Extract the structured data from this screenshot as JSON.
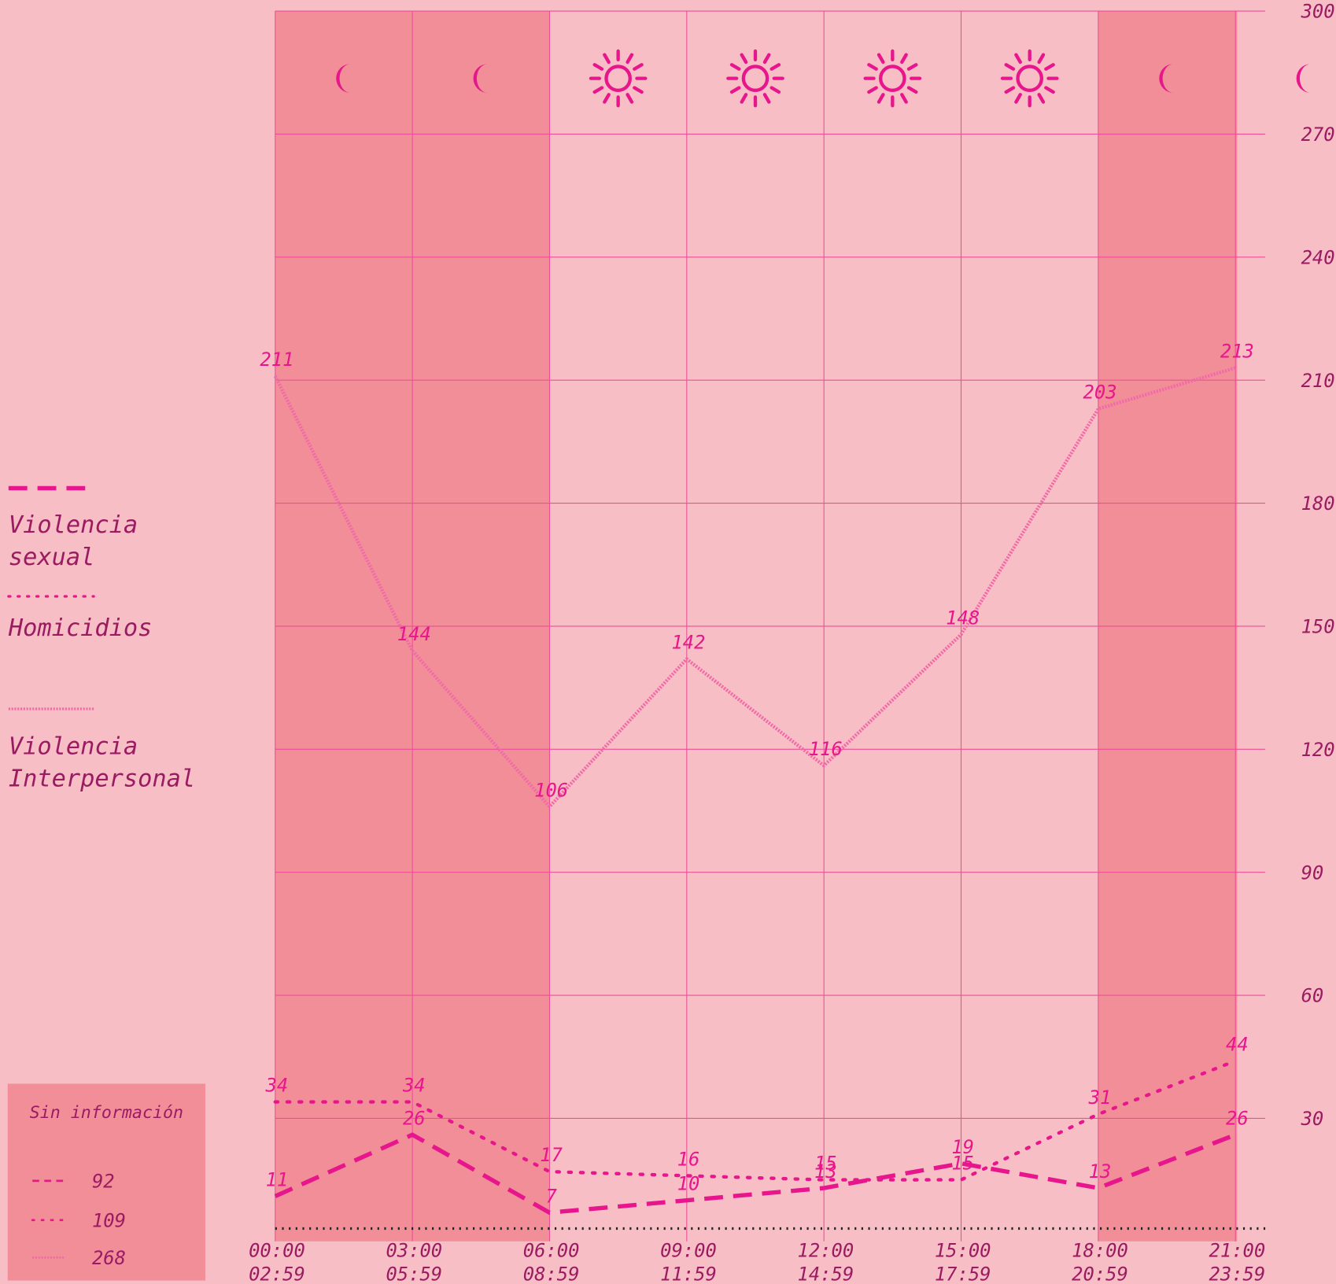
{
  "chart_data": {
    "type": "line",
    "categories": [
      [
        "00:00",
        "02:59"
      ],
      [
        "03:00",
        "05:59"
      ],
      [
        "06:00",
        "08:59"
      ],
      [
        "09:00",
        "11:59"
      ],
      [
        "12:00",
        "14:59"
      ],
      [
        "15:00",
        "17:59"
      ],
      [
        "18:00",
        "20:59"
      ],
      [
        "21:00",
        "23:59"
      ]
    ],
    "period": [
      "night",
      "night",
      "day",
      "day",
      "day",
      "day",
      "night",
      "night"
    ],
    "series": [
      {
        "name": "Violencia sexual",
        "color": "#e8168c",
        "style": "dashed",
        "values": [
          11,
          26,
          7,
          10,
          13,
          19,
          13,
          26
        ]
      },
      {
        "name": "Homicidios",
        "color": "#e8168c",
        "style": "dotted",
        "values": [
          34,
          34,
          17,
          16,
          15,
          15,
          31,
          44
        ]
      },
      {
        "name": "Violencia Interpersonal",
        "color": "#f06aa8",
        "style": "textured",
        "values": [
          211,
          144,
          106,
          142,
          116,
          148,
          203,
          213
        ]
      }
    ],
    "ylim": [
      0,
      300
    ],
    "yticks": [
      30,
      60,
      90,
      120,
      150,
      180,
      210,
      240,
      270,
      300
    ],
    "grid": true,
    "sin_informacion": {
      "title": "Sin información",
      "values": [
        92,
        109,
        268
      ]
    }
  }
}
